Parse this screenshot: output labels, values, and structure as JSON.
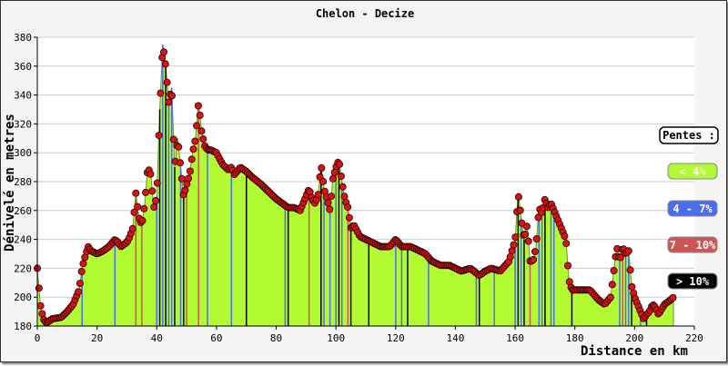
{
  "chart_data": {
    "type": "area",
    "title": "Chelon - Decize",
    "xlabel": "Distance en km",
    "ylabel": "Dénivelé en metres",
    "xlim": [
      0,
      220
    ],
    "ylim": [
      180,
      380
    ],
    "xticks": [
      "0",
      "20",
      "40",
      "60",
      "80",
      "100",
      "120",
      "140",
      "160",
      "180",
      "200",
      "220"
    ],
    "yticks": [
      "180",
      "200",
      "220",
      "240",
      "260",
      "280",
      "300",
      "320",
      "340",
      "360",
      "380"
    ],
    "grid": "horizontal",
    "legend_title": "Pentes :",
    "legend_placement": "right",
    "legend": [
      {
        "label": "< 4%",
        "color": "#b2fa31"
      },
      {
        "label": "4 - 7%",
        "color": "#4a6df0"
      },
      {
        "label": "7 - 10%",
        "color": "#cc5555"
      },
      {
        "label": "> 10%",
        "color": "#000000"
      }
    ],
    "series": [
      {
        "x": [
          0,
          1,
          2,
          3,
          5,
          8,
          10,
          12,
          14,
          15,
          16,
          17,
          18,
          20,
          22,
          24,
          26,
          27,
          28,
          30,
          31,
          32,
          33,
          34,
          35,
          36,
          37,
          38,
          39,
          40,
          41,
          42,
          43,
          44,
          45,
          46,
          47,
          48,
          49,
          50,
          51,
          52,
          53,
          54,
          55,
          56,
          57,
          58,
          60,
          62,
          64,
          65,
          66,
          68,
          70,
          72,
          75,
          78,
          80,
          82,
          84,
          86,
          88,
          90,
          91,
          92,
          93,
          94,
          95,
          96,
          97,
          98,
          99,
          100,
          101,
          102,
          103,
          104,
          105,
          106,
          108,
          110,
          112,
          115,
          118,
          120,
          122,
          125,
          128,
          130,
          132,
          135,
          138,
          140,
          142,
          145,
          148,
          150,
          152,
          155,
          158,
          160,
          161,
          162,
          163,
          164,
          165,
          166,
          167,
          168,
          169,
          170,
          171,
          172,
          173,
          174,
          175,
          176,
          177,
          178,
          179,
          180,
          182,
          185,
          188,
          190,
          192,
          194,
          195,
          196,
          197,
          198,
          199,
          200,
          201,
          202,
          203,
          204,
          205,
          206,
          207,
          208,
          210,
          212,
          213
        ],
        "y": [
          220,
          195,
          185,
          182,
          185,
          186,
          190,
          195,
          205,
          220,
          228,
          235,
          232,
          230,
          232,
          235,
          240,
          238,
          235,
          238,
          242,
          248,
          272,
          255,
          250,
          265,
          290,
          285,
          262,
          270,
          330,
          375,
          360,
          335,
          345,
          290,
          310,
          290,
          270,
          278,
          285,
          300,
          310,
          335,
          315,
          305,
          302,
          302,
          300,
          292,
          288,
          290,
          285,
          290,
          287,
          283,
          278,
          272,
          268,
          265,
          262,
          262,
          260,
          270,
          275,
          268,
          265,
          270,
          292,
          275,
          268,
          260,
          282,
          290,
          295,
          280,
          268,
          262,
          248,
          250,
          242,
          240,
          238,
          235,
          235,
          240,
          235,
          235,
          232,
          230,
          225,
          222,
          222,
          220,
          218,
          220,
          215,
          218,
          220,
          218,
          225,
          240,
          272,
          255,
          240,
          250,
          225,
          225,
          235,
          262,
          258,
          268,
          262,
          265,
          260,
          255,
          250,
          245,
          240,
          212,
          205,
          205,
          205,
          205,
          198,
          195,
          200,
          235,
          225,
          235,
          230,
          232,
          208,
          200,
          195,
          190,
          185,
          188,
          190,
          195,
          193,
          188,
          195,
          198,
          200
        ]
      }
    ],
    "slope_markers": [
      {
        "x": 15,
        "class": 1
      },
      {
        "x": 26,
        "class": 1
      },
      {
        "x": 33,
        "class": 2
      },
      {
        "x": 35,
        "class": 2
      },
      {
        "x": 40,
        "class": 1
      },
      {
        "x": 41,
        "class": 3
      },
      {
        "x": 42,
        "class": 1
      },
      {
        "x": 43,
        "class": 3
      },
      {
        "x": 44,
        "class": 1
      },
      {
        "x": 45,
        "class": 1
      },
      {
        "x": 46,
        "class": 3
      },
      {
        "x": 48,
        "class": 1
      },
      {
        "x": 49,
        "class": 3
      },
      {
        "x": 50,
        "class": 2
      },
      {
        "x": 54,
        "class": 2
      },
      {
        "x": 57,
        "class": 1
      },
      {
        "x": 65,
        "class": 1
      },
      {
        "x": 70,
        "class": 3
      },
      {
        "x": 83,
        "class": 1
      },
      {
        "x": 84,
        "class": 3
      },
      {
        "x": 91,
        "class": 2
      },
      {
        "x": 95,
        "class": 3
      },
      {
        "x": 96,
        "class": 1
      },
      {
        "x": 98,
        "class": 1
      },
      {
        "x": 100,
        "class": 1
      },
      {
        "x": 101,
        "class": 3
      },
      {
        "x": 102,
        "class": 1
      },
      {
        "x": 104,
        "class": 2
      },
      {
        "x": 105,
        "class": 3
      },
      {
        "x": 111,
        "class": 3
      },
      {
        "x": 120,
        "class": 1
      },
      {
        "x": 122,
        "class": 1
      },
      {
        "x": 124,
        "class": 3
      },
      {
        "x": 131,
        "class": 1
      },
      {
        "x": 147,
        "class": 1
      },
      {
        "x": 148,
        "class": 3
      },
      {
        "x": 153,
        "class": 1
      },
      {
        "x": 160,
        "class": 1
      },
      {
        "x": 161,
        "class": 3
      },
      {
        "x": 162,
        "class": 1
      },
      {
        "x": 163,
        "class": 3
      },
      {
        "x": 165,
        "class": 2
      },
      {
        "x": 168,
        "class": 1
      },
      {
        "x": 169,
        "class": 1
      },
      {
        "x": 170,
        "class": 3
      },
      {
        "x": 172,
        "class": 1
      },
      {
        "x": 173,
        "class": 1
      },
      {
        "x": 179,
        "class": 3
      },
      {
        "x": 195,
        "class": 1
      },
      {
        "x": 196,
        "class": 2
      },
      {
        "x": 197,
        "class": 1
      },
      {
        "x": 198,
        "class": 1
      },
      {
        "x": 199,
        "class": 3
      },
      {
        "x": 202,
        "class": 1
      },
      {
        "x": 204,
        "class": 3
      }
    ]
  }
}
